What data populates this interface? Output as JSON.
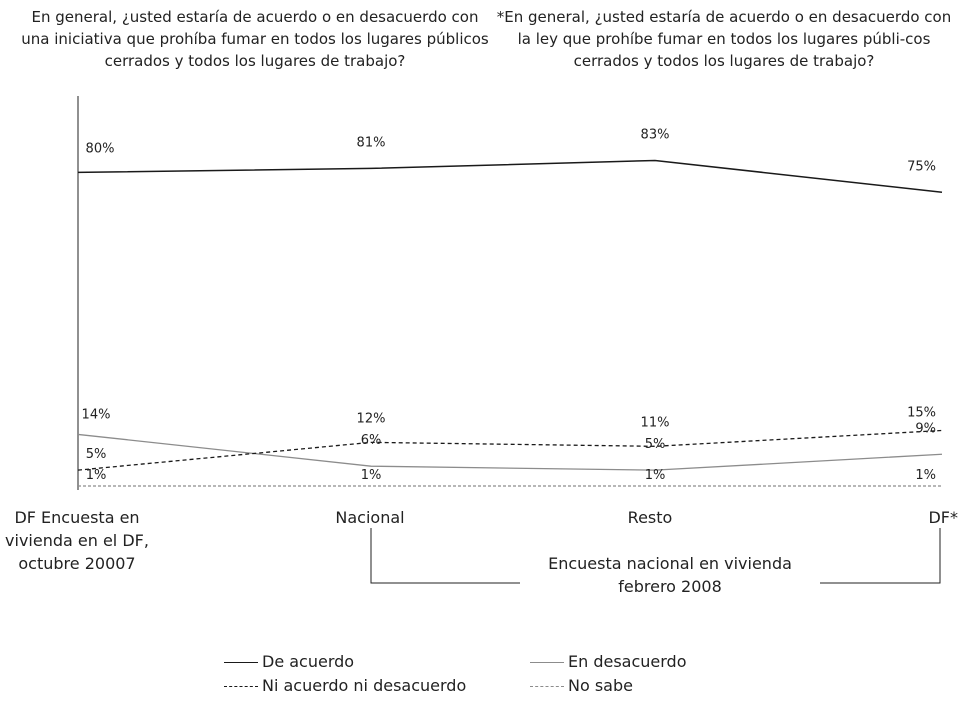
{
  "question_left": "En general, ¿usted estaría de acuerdo o en desacuerdo con una iniciativa que prohíba fumar en todos los lugares públicos cerrados y todos los lugares de trabajo?",
  "question_right": "*En general, ¿usted estaría de acuerdo o en desacuerdo con la ley que prohíbe fumar en todos los lugares públi-cos cerrados y todos los lugares de trabajo?",
  "bracket_label": "Encuesta nacional en vivienda febrero 2008",
  "chart_data": {
    "type": "line",
    "categories": [
      "DF Encuesta en vivienda en el DF, octubre 20007",
      "Nacional",
      "Resto",
      "DF*"
    ],
    "ylim": [
      0,
      100
    ],
    "grid": false,
    "legend_placement": "bottom",
    "series": [
      {
        "name": "De acuerdo",
        "values": [
          80,
          81,
          83,
          75
        ],
        "labels": [
          "80%",
          "81%",
          "83%",
          "75%"
        ],
        "color": "#1a1a1a",
        "dash": "solid"
      },
      {
        "name": "En desacuerdo",
        "values": [
          14,
          6,
          5,
          9
        ],
        "labels": [
          "14%",
          "6%",
          "5%",
          "9%"
        ],
        "color": "#8c8c8c",
        "dash": "solid"
      },
      {
        "name": "Ni acuerdo ni desacuerdo",
        "values": [
          5,
          12,
          11,
          15
        ],
        "labels": [
          "5%",
          "12%",
          "11%",
          "15%"
        ],
        "color": "#1a1a1a",
        "dash": "dashed"
      },
      {
        "name": "No sabe",
        "values": [
          1,
          1,
          1,
          1
        ],
        "labels": [
          "1%",
          "1%",
          "1%",
          "1%"
        ],
        "color": "#8c8c8c",
        "dash": "dashed"
      }
    ]
  }
}
